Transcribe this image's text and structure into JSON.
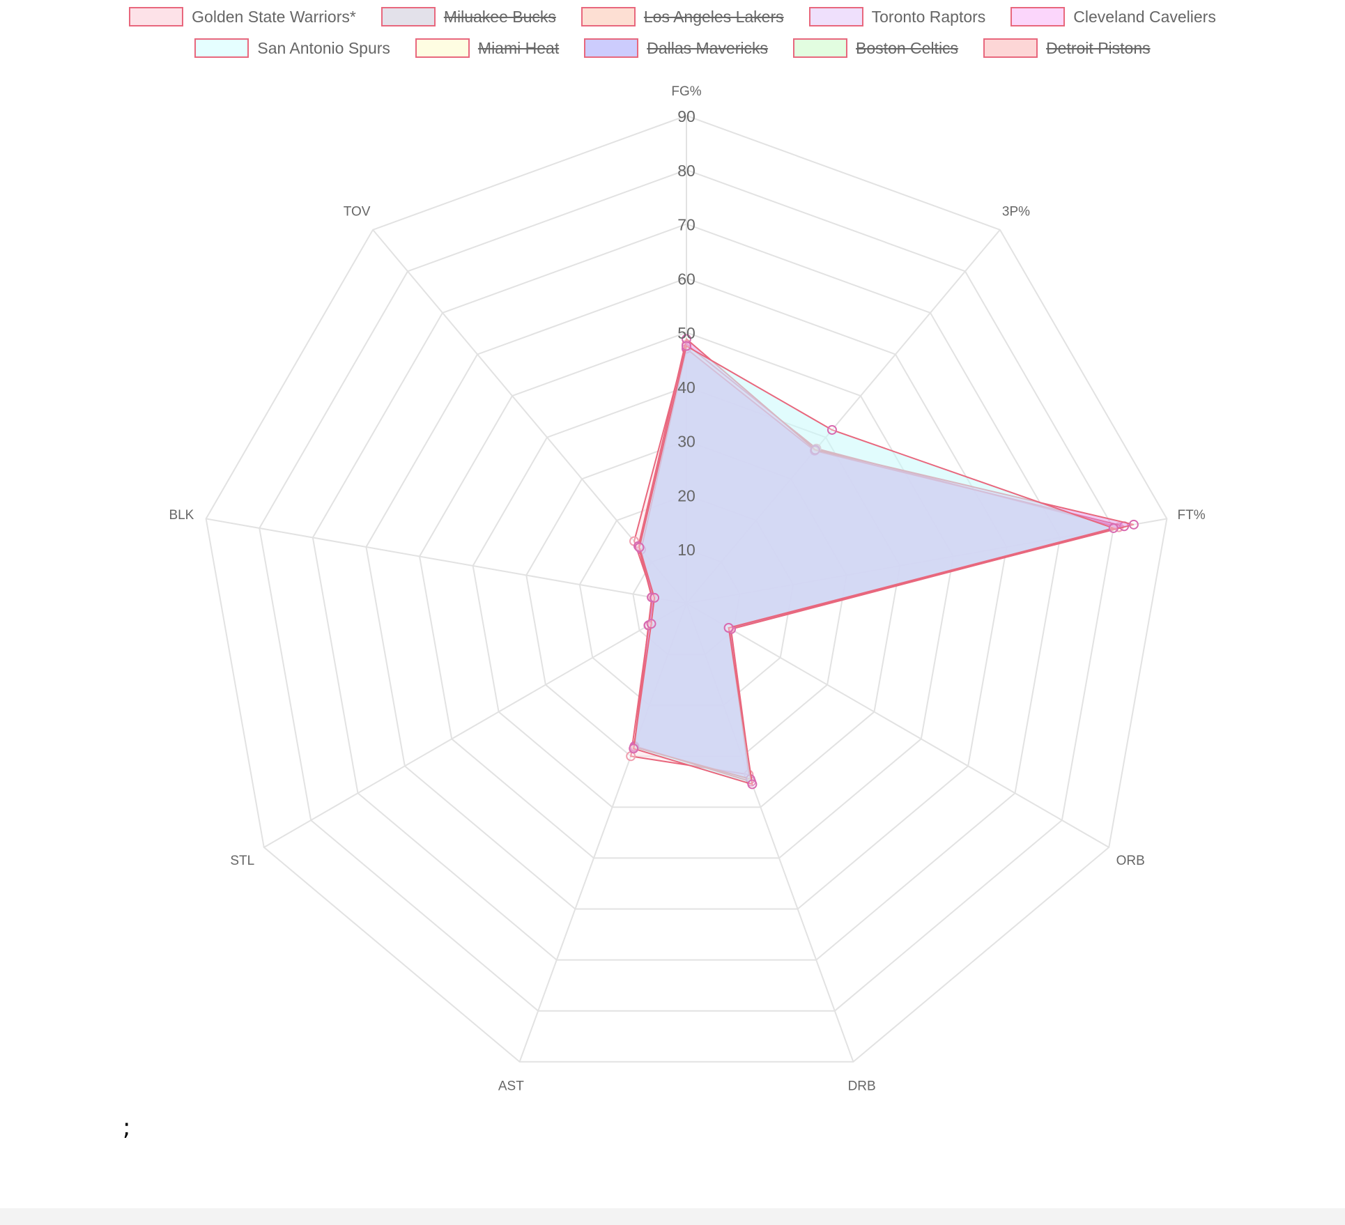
{
  "legend": [
    {
      "label": "Golden State Warriors*",
      "fill": "#fde2e8",
      "hidden": false
    },
    {
      "label": "Miluakee Bucks",
      "fill": "#e3e1ea",
      "hidden": true
    },
    {
      "label": "Los Angeles Lakers",
      "fill": "#fddfd3",
      "hidden": true
    },
    {
      "label": "Toronto Raptors",
      "fill": "#efe0fc",
      "hidden": false
    },
    {
      "label": "Cleveland Caveliers",
      "fill": "#fbd6fb",
      "hidden": false
    },
    {
      "label": "San Antonio Spurs",
      "fill": "#e5feff",
      "hidden": false
    },
    {
      "label": "Miami Heat",
      "fill": "#fefde2",
      "hidden": true
    },
    {
      "label": "Dallas Mavericks",
      "fill": "#ccccfd",
      "hidden": true
    },
    {
      "label": "Boston Celtics",
      "fill": "#e2fde0",
      "hidden": true
    },
    {
      "label": "Detroit Pistons",
      "fill": "#fdd6d6",
      "hidden": true
    }
  ],
  "stray_text": ";",
  "chart_data": {
    "type": "radar",
    "axes": [
      "FG%",
      "3P%",
      "FT%",
      "ORB",
      "DRB",
      "AST",
      "STL",
      "BLK",
      "TOV"
    ],
    "r_ticks": [
      10,
      20,
      30,
      40,
      50,
      60,
      70,
      80,
      90
    ],
    "r_range": [
      0,
      90
    ],
    "grid": true,
    "legend_position": "top",
    "line_color": "#e8677d",
    "series": [
      {
        "name": "Golden State Warriors*",
        "values": [
          47.8,
          37.3,
          81.0,
          9.2,
          33.6,
          30.0,
          8.0,
          6.2,
          15.0
        ],
        "fill": "rgba(253,226,232,0.55)",
        "point": "#f0a0b0"
      },
      {
        "name": "Toronto Raptors",
        "values": [
          47.0,
          36.8,
          82.0,
          9.5,
          35.0,
          28.0,
          8.0,
          6.5,
          13.0
        ],
        "fill": "rgba(210,170,240,0.45)",
        "point": "#d86ab0"
      },
      {
        "name": "Cleveland Caveliers",
        "values": [
          48.8,
          37.0,
          83.8,
          9.0,
          34.5,
          28.2,
          8.1,
          6.5,
          13.8
        ],
        "fill": "rgba(220,140,230,0.45)",
        "point": "#d86ab0"
      },
      {
        "name": "San Antonio Spurs",
        "values": [
          47.5,
          41.8,
          80.0,
          9.0,
          35.5,
          28.5,
          7.5,
          6.0,
          13.5
        ],
        "fill": "rgba(200,250,252,0.55)",
        "point": "#d86ab0"
      }
    ]
  }
}
